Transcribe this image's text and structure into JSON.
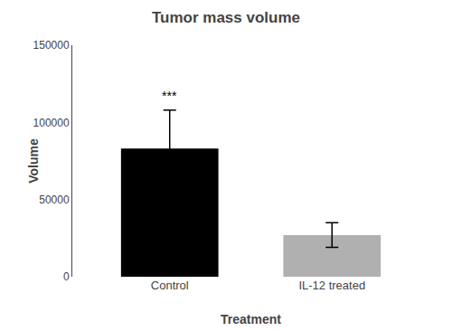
{
  "chart_data": {
    "type": "bar",
    "title": "Tumor mass volume",
    "xlabel": "Treatment",
    "ylabel": "Volume",
    "categories": [
      "Control",
      "IL-12 treated"
    ],
    "values": [
      83000,
      27000
    ],
    "errors": [
      25000,
      8000
    ],
    "colors": [
      "#000000",
      "#b0b0b0"
    ],
    "ylim": [
      0,
      150000
    ],
    "yticks": [
      0,
      50000,
      100000,
      150000
    ],
    "grid": false,
    "annotations": [
      {
        "text": "***",
        "x": "Control"
      }
    ]
  }
}
